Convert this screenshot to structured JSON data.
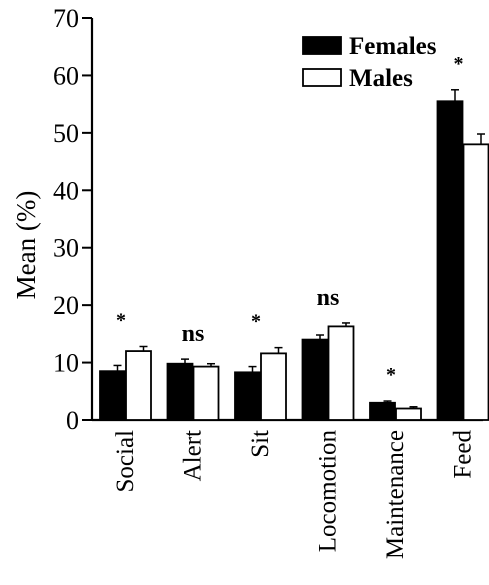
{
  "chart_data": {
    "type": "bar",
    "ylabel": "Mean (%)",
    "xlabel": "",
    "title": "",
    "ylim": [
      0,
      70
    ],
    "yticks": [
      0,
      10,
      20,
      30,
      40,
      50,
      60,
      70
    ],
    "categories": [
      "Social",
      "Alert",
      "Sit",
      "Locomotion",
      "Maintenance",
      "Feed"
    ],
    "series": [
      {
        "name": "Females",
        "color": "#000000",
        "values": [
          8.5,
          9.8,
          8.3,
          14.0,
          3.0,
          55.5
        ],
        "errors": [
          1.0,
          0.8,
          1.0,
          0.8,
          0.3,
          2.0
        ]
      },
      {
        "name": "Males",
        "color": "#ffffff",
        "values": [
          12.0,
          9.3,
          11.6,
          16.3,
          2.0,
          48.0
        ],
        "errors": [
          0.8,
          0.5,
          1.0,
          0.6,
          0.3,
          1.8
        ]
      }
    ],
    "significance": [
      "*",
      "ns",
      "*",
      "ns",
      "*",
      "*"
    ],
    "legend_position": "top-right",
    "grid": false
  }
}
